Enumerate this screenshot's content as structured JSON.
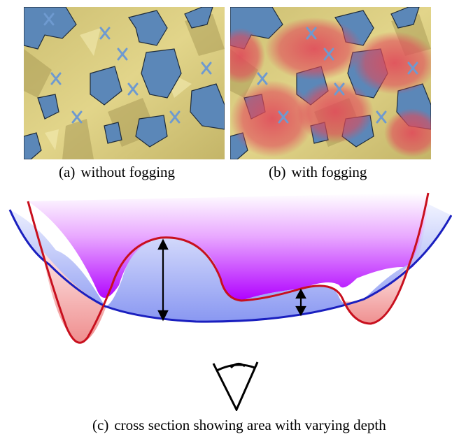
{
  "captions": {
    "a_label": "(a)",
    "a_text": "without fogging",
    "b_label": "(b)",
    "b_text": "with fogging",
    "c_label": "(c)",
    "c_text": "cross section showing area with varying depth"
  },
  "colors": {
    "terrain": "#d9c97a",
    "terrain_shadow": "#a99a55",
    "water": "#5b87b8",
    "fog": "#e04a5a",
    "surface_curve": "#c8101e",
    "depth_curve": "#1a1fbf",
    "fog_gradient_top": "#ffffff",
    "fog_gradient_bottom": "#b000ff",
    "water_fill_top": "#e6ebff",
    "water_fill_bottom": "#7c8cf0",
    "pit_fill": "#f0a0a0"
  }
}
